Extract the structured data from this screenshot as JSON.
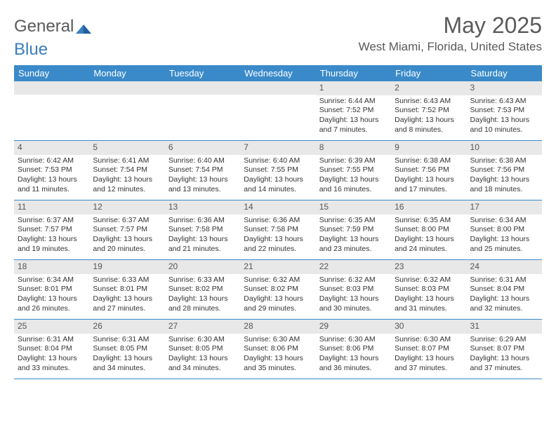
{
  "logo": {
    "text_a": "General",
    "text_b": "Blue"
  },
  "title": "May 2025",
  "location": "West Miami, Florida, United States",
  "colors": {
    "header_bg": "#3a8ac9",
    "header_text": "#ffffff",
    "stripe_bg": "#e8e8e8",
    "row_border": "#3a8ac9",
    "text": "#333333",
    "title_text": "#5a5a5a",
    "logo_gray": "#5a5a5a",
    "logo_blue": "#3a7dbf"
  },
  "day_headers": [
    "Sunday",
    "Monday",
    "Tuesday",
    "Wednesday",
    "Thursday",
    "Friday",
    "Saturday"
  ],
  "weeks": [
    [
      null,
      null,
      null,
      null,
      {
        "n": "1",
        "sr": "6:44 AM",
        "ss": "7:52 PM",
        "dl": "13 hours and 7 minutes."
      },
      {
        "n": "2",
        "sr": "6:43 AM",
        "ss": "7:52 PM",
        "dl": "13 hours and 8 minutes."
      },
      {
        "n": "3",
        "sr": "6:43 AM",
        "ss": "7:53 PM",
        "dl": "13 hours and 10 minutes."
      }
    ],
    [
      {
        "n": "4",
        "sr": "6:42 AM",
        "ss": "7:53 PM",
        "dl": "13 hours and 11 minutes."
      },
      {
        "n": "5",
        "sr": "6:41 AM",
        "ss": "7:54 PM",
        "dl": "13 hours and 12 minutes."
      },
      {
        "n": "6",
        "sr": "6:40 AM",
        "ss": "7:54 PM",
        "dl": "13 hours and 13 minutes."
      },
      {
        "n": "7",
        "sr": "6:40 AM",
        "ss": "7:55 PM",
        "dl": "13 hours and 14 minutes."
      },
      {
        "n": "8",
        "sr": "6:39 AM",
        "ss": "7:55 PM",
        "dl": "13 hours and 16 minutes."
      },
      {
        "n": "9",
        "sr": "6:38 AM",
        "ss": "7:56 PM",
        "dl": "13 hours and 17 minutes."
      },
      {
        "n": "10",
        "sr": "6:38 AM",
        "ss": "7:56 PM",
        "dl": "13 hours and 18 minutes."
      }
    ],
    [
      {
        "n": "11",
        "sr": "6:37 AM",
        "ss": "7:57 PM",
        "dl": "13 hours and 19 minutes."
      },
      {
        "n": "12",
        "sr": "6:37 AM",
        "ss": "7:57 PM",
        "dl": "13 hours and 20 minutes."
      },
      {
        "n": "13",
        "sr": "6:36 AM",
        "ss": "7:58 PM",
        "dl": "13 hours and 21 minutes."
      },
      {
        "n": "14",
        "sr": "6:36 AM",
        "ss": "7:58 PM",
        "dl": "13 hours and 22 minutes."
      },
      {
        "n": "15",
        "sr": "6:35 AM",
        "ss": "7:59 PM",
        "dl": "13 hours and 23 minutes."
      },
      {
        "n": "16",
        "sr": "6:35 AM",
        "ss": "8:00 PM",
        "dl": "13 hours and 24 minutes."
      },
      {
        "n": "17",
        "sr": "6:34 AM",
        "ss": "8:00 PM",
        "dl": "13 hours and 25 minutes."
      }
    ],
    [
      {
        "n": "18",
        "sr": "6:34 AM",
        "ss": "8:01 PM",
        "dl": "13 hours and 26 minutes."
      },
      {
        "n": "19",
        "sr": "6:33 AM",
        "ss": "8:01 PM",
        "dl": "13 hours and 27 minutes."
      },
      {
        "n": "20",
        "sr": "6:33 AM",
        "ss": "8:02 PM",
        "dl": "13 hours and 28 minutes."
      },
      {
        "n": "21",
        "sr": "6:32 AM",
        "ss": "8:02 PM",
        "dl": "13 hours and 29 minutes."
      },
      {
        "n": "22",
        "sr": "6:32 AM",
        "ss": "8:03 PM",
        "dl": "13 hours and 30 minutes."
      },
      {
        "n": "23",
        "sr": "6:32 AM",
        "ss": "8:03 PM",
        "dl": "13 hours and 31 minutes."
      },
      {
        "n": "24",
        "sr": "6:31 AM",
        "ss": "8:04 PM",
        "dl": "13 hours and 32 minutes."
      }
    ],
    [
      {
        "n": "25",
        "sr": "6:31 AM",
        "ss": "8:04 PM",
        "dl": "13 hours and 33 minutes."
      },
      {
        "n": "26",
        "sr": "6:31 AM",
        "ss": "8:05 PM",
        "dl": "13 hours and 34 minutes."
      },
      {
        "n": "27",
        "sr": "6:30 AM",
        "ss": "8:05 PM",
        "dl": "13 hours and 34 minutes."
      },
      {
        "n": "28",
        "sr": "6:30 AM",
        "ss": "8:06 PM",
        "dl": "13 hours and 35 minutes."
      },
      {
        "n": "29",
        "sr": "6:30 AM",
        "ss": "8:06 PM",
        "dl": "13 hours and 36 minutes."
      },
      {
        "n": "30",
        "sr": "6:30 AM",
        "ss": "8:07 PM",
        "dl": "13 hours and 37 minutes."
      },
      {
        "n": "31",
        "sr": "6:29 AM",
        "ss": "8:07 PM",
        "dl": "13 hours and 37 minutes."
      }
    ]
  ],
  "labels": {
    "sunrise": "Sunrise:",
    "sunset": "Sunset:",
    "daylight": "Daylight:"
  }
}
